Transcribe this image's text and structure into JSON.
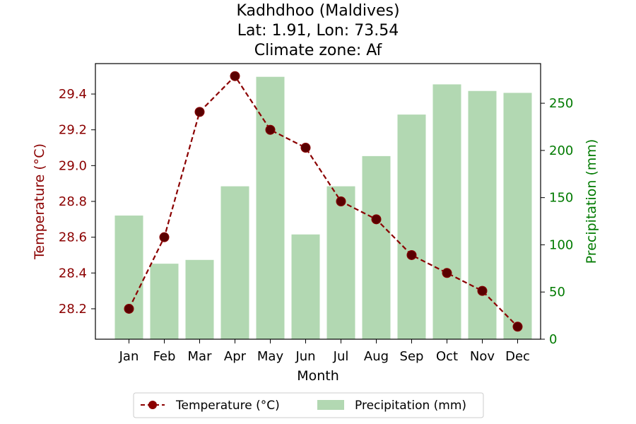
{
  "chart_data": {
    "type": "bar+line",
    "title_lines": [
      "Kadhdhoo (Maldives)",
      "Lat: 1.91, Lon: 73.54",
      "Climate zone: Af"
    ],
    "xlabel": "Month",
    "categories": [
      "Jan",
      "Feb",
      "Mar",
      "Apr",
      "May",
      "Jun",
      "Jul",
      "Aug",
      "Sep",
      "Oct",
      "Nov",
      "Dec"
    ],
    "temperature": {
      "name": "Temperature (°C)",
      "axis_label": "Temperature (°C)",
      "values": [
        28.2,
        28.6,
        29.3,
        29.5,
        29.2,
        29.1,
        28.8,
        28.7,
        28.5,
        28.4,
        28.3,
        28.1
      ],
      "ylim": [
        28.03,
        29.57
      ],
      "ticks": [
        28.2,
        28.4,
        28.6,
        28.8,
        29.0,
        29.2,
        29.4
      ],
      "tick_labels": [
        "28.2",
        "28.4",
        "28.6",
        "28.8",
        "29.0",
        "29.2",
        "29.4"
      ],
      "color": "#8b0000",
      "style": "dashed line with circle markers"
    },
    "precipitation": {
      "name": "Precipitation (mm)",
      "axis_label": "Precipitation (mm)",
      "values": [
        131,
        80,
        84,
        162,
        278,
        111,
        162,
        194,
        238,
        270,
        263,
        261
      ],
      "ylim": [
        0,
        292
      ],
      "ticks": [
        0,
        50,
        100,
        150,
        200,
        250
      ],
      "tick_labels": [
        "0",
        "50",
        "100",
        "150",
        "200",
        "250"
      ],
      "color": "#b2d8b2",
      "label_color": "#007a00"
    },
    "legend": {
      "placement": "bottom-center, below axes"
    },
    "grid": false
  }
}
